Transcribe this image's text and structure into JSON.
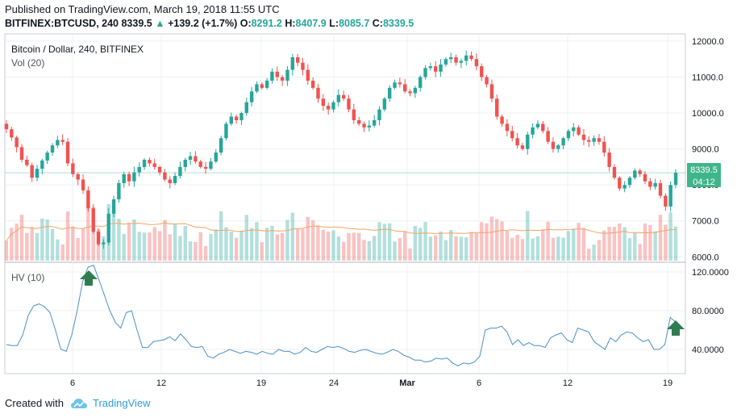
{
  "header": {
    "published": "Published on TradingView.com, March 19, 2018 11:55 UTC",
    "symbol": "BITFINEX:BTCUSD, 240",
    "last": "8339.5",
    "change": "+139.2 (+1.7%)",
    "o_label": "O:",
    "o": "8291.2",
    "h_label": "H:",
    "h": "8407.9",
    "l_label": "L:",
    "l": "8085.7",
    "c_label": "C:",
    "c": "8339.5"
  },
  "panes": {
    "main_title": "Bitcoin / Dollar, 240, BITFINEX",
    "volume_label": "Vol (20)",
    "hv_label": "HV (10)"
  },
  "price_badge": {
    "value": "8339.5",
    "timer": "04:12"
  },
  "footer": {
    "created_with": "Created with",
    "brand": "TradingView"
  },
  "colors": {
    "up": "#26a69a",
    "down": "#ef5350",
    "vol_ma": "#f4a460",
    "hv_line": "#4a90c8",
    "arrow": "#2e7d4f",
    "badge": "#3fb58b"
  },
  "chart_data": [
    {
      "type": "candlestick",
      "title": "Bitcoin / Dollar, 240, BITFINEX",
      "y_ticks": [
        6000,
        7000,
        8000,
        9000,
        10000,
        11000,
        12000
      ],
      "y_tick_labels": [
        "6000.0",
        "7000.0",
        "8000.0",
        "9000.0",
        "10000.0",
        "11000.0",
        "12000.0"
      ],
      "ylim": [
        5850,
        12200
      ],
      "x_ticks": [
        "6",
        "12",
        "19",
        "24",
        "Mar",
        "6",
        "12",
        "19"
      ],
      "grid": true,
      "close": [
        9550,
        9320,
        9050,
        8700,
        8550,
        8200,
        8450,
        8680,
        8900,
        9100,
        9250,
        9200,
        8600,
        8300,
        8150,
        7850,
        7350,
        6700,
        6350,
        6400,
        7200,
        7600,
        8050,
        8300,
        8100,
        8350,
        8500,
        8700,
        8600,
        8500,
        8350,
        8150,
        8050,
        8250,
        8500,
        8700,
        8800,
        8650,
        8500,
        8450,
        8650,
        8900,
        9300,
        9700,
        9900,
        9800,
        10000,
        10300,
        10600,
        10800,
        10700,
        10900,
        11150,
        11000,
        10900,
        11200,
        11550,
        11400,
        11200,
        10900,
        10700,
        10400,
        10200,
        10100,
        10300,
        10500,
        10400,
        10100,
        9800,
        9700,
        9600,
        9650,
        9800,
        10100,
        10400,
        10700,
        10850,
        10800,
        10600,
        10550,
        10700,
        11000,
        11250,
        11300,
        11150,
        11350,
        11500,
        11550,
        11400,
        11450,
        11600,
        11500,
        11300,
        11000,
        10800,
        10400,
        9900,
        9700,
        9500,
        9300,
        9100,
        9000,
        9400,
        9600,
        9700,
        9500,
        9200,
        9000,
        9100,
        9300,
        9500,
        9600,
        9400,
        9250,
        9200,
        9300,
        9200,
        8900,
        8500,
        8200,
        7900,
        8000,
        8200,
        8400,
        8300,
        8100,
        7950,
        8050,
        7700,
        7400,
        8000,
        8339.5
      ]
    },
    {
      "type": "bar",
      "title": "Vol (20)",
      "moving_average_series": "Vol (20)"
    },
    {
      "type": "line",
      "title": "HV (10)",
      "y_ticks": [
        40,
        80,
        120
      ],
      "y_tick_labels": [
        "40.0000",
        "80.0000",
        "120.0000"
      ],
      "ylim": [
        15,
        130
      ],
      "values": [
        45,
        44,
        44,
        55,
        75,
        85,
        87,
        84,
        78,
        60,
        40,
        38,
        55,
        80,
        110,
        125,
        127,
        112,
        96,
        80,
        68,
        62,
        78,
        80,
        60,
        42,
        42,
        48,
        49,
        50,
        53,
        49,
        56,
        50,
        43,
        42,
        43,
        33,
        31,
        35,
        37,
        40,
        38,
        36,
        38,
        37,
        35,
        38,
        36,
        35,
        40,
        38,
        38,
        35,
        37,
        42,
        38,
        37,
        40,
        43,
        42,
        43,
        41,
        38,
        37,
        39,
        40,
        38,
        36,
        35,
        37,
        40,
        38,
        34,
        32,
        29,
        29,
        27,
        28,
        31,
        30,
        31,
        26,
        23,
        26,
        25,
        27,
        33,
        60,
        62,
        62,
        64,
        58,
        45,
        50,
        44,
        47,
        44,
        44,
        42,
        52,
        55,
        57,
        50,
        47,
        62,
        60,
        58,
        48,
        44,
        40,
        52,
        48,
        55,
        58,
        57,
        52,
        48,
        50,
        40,
        40,
        45,
        73,
        68
      ]
    }
  ]
}
